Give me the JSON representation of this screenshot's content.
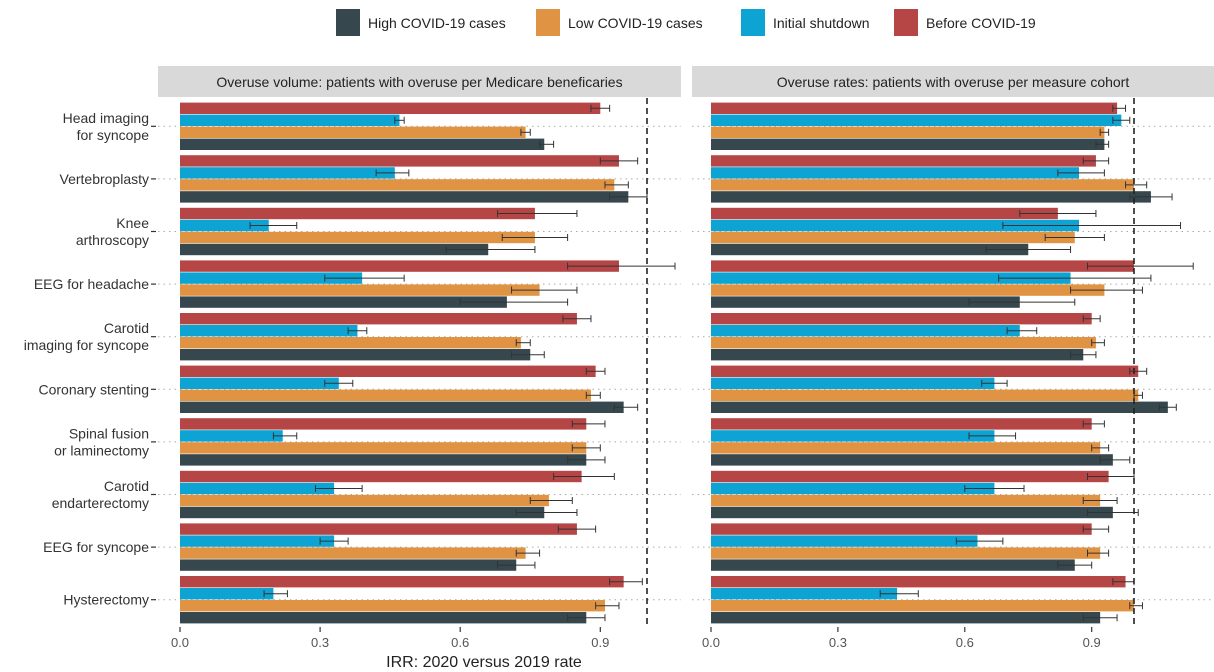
{
  "chart_data": {
    "type": "bar",
    "orientation": "horizontal",
    "xlabel": "IRR: 2020 versus 2019 rate",
    "xlim": [
      0,
      1.12
    ],
    "xticks": [
      0,
      0.3,
      0.6,
      0.9
    ],
    "xtick_labels": [
      "0.0",
      "0.3",
      "0.6",
      "0.9"
    ],
    "reference_line": 1,
    "legend_position": "top",
    "categories": [
      [
        "Head imaging",
        "for syncope"
      ],
      [
        "Vertebroplasty"
      ],
      [
        "Knee",
        "arthroscopy"
      ],
      [
        "EEG for headache"
      ],
      [
        "Carotid",
        "imaging for syncope"
      ],
      [
        "Coronary stenting"
      ],
      [
        "Spinal fusion",
        "or laminectomy"
      ],
      [
        "Carotid",
        "endarterectomy"
      ],
      [
        "EEG for syncope"
      ],
      [
        "Hysterectomy"
      ]
    ],
    "series": [
      {
        "name": "High COVID-19 cases",
        "color": "#36474d"
      },
      {
        "name": "Low COVID-19 cases",
        "color": "#e09443"
      },
      {
        "name": "Initial shutdown",
        "color": "#0da4d4"
      },
      {
        "name": "Before COVID-19",
        "color": "#b64646"
      }
    ],
    "panels": [
      {
        "title": "Overuse volume: patients with overuse per Medicare beneficaries",
        "values": {
          "Before COVID-19": [
            0.9,
            0.94,
            0.76,
            0.94,
            0.85,
            0.89,
            0.87,
            0.86,
            0.85,
            0.95
          ],
          "Initial shutdown": [
            0.47,
            0.46,
            0.19,
            0.39,
            0.38,
            0.34,
            0.22,
            0.33,
            0.33,
            0.2
          ],
          "Low COVID-19 cases": [
            0.74,
            0.93,
            0.76,
            0.77,
            0.73,
            0.88,
            0.87,
            0.79,
            0.74,
            0.91
          ],
          "High COVID-19 cases": [
            0.78,
            0.96,
            0.66,
            0.7,
            0.75,
            0.95,
            0.87,
            0.78,
            0.72,
            0.87
          ]
        },
        "ci_low": {
          "Before COVID-19": [
            0.88,
            0.9,
            0.68,
            0.83,
            0.82,
            0.87,
            0.84,
            0.8,
            0.81,
            0.92
          ],
          "Initial shutdown": [
            0.46,
            0.42,
            0.15,
            0.31,
            0.36,
            0.31,
            0.2,
            0.29,
            0.3,
            0.18
          ],
          "Low COVID-19 cases": [
            0.73,
            0.91,
            0.69,
            0.71,
            0.72,
            0.87,
            0.84,
            0.75,
            0.72,
            0.89
          ],
          "High COVID-19 cases": [
            0.77,
            0.92,
            0.57,
            0.6,
            0.71,
            0.93,
            0.83,
            0.72,
            0.68,
            0.83
          ]
        },
        "ci_high": {
          "Before COVID-19": [
            0.92,
            0.98,
            0.85,
            1.06,
            0.88,
            0.91,
            0.91,
            0.93,
            0.89,
            0.99
          ],
          "Initial shutdown": [
            0.48,
            0.49,
            0.25,
            0.48,
            0.4,
            0.37,
            0.25,
            0.39,
            0.36,
            0.23
          ],
          "Low COVID-19 cases": [
            0.75,
            0.96,
            0.83,
            0.85,
            0.75,
            0.9,
            0.9,
            0.84,
            0.77,
            0.94
          ],
          "High COVID-19 cases": [
            0.8,
            1.0,
            0.76,
            0.83,
            0.78,
            0.98,
            0.91,
            0.85,
            0.76,
            0.91
          ]
        }
      },
      {
        "title": "Overuse rates: patients with overuse per measure cohort",
        "values": {
          "Before COVID-19": [
            0.96,
            0.91,
            0.82,
            1.0,
            0.9,
            1.01,
            0.9,
            0.94,
            0.9,
            0.98
          ],
          "Initial shutdown": [
            0.97,
            0.87,
            0.87,
            0.85,
            0.73,
            0.67,
            0.67,
            0.67,
            0.63,
            0.44
          ],
          "Low COVID-19 cases": [
            0.93,
            1.0,
            0.86,
            0.93,
            0.91,
            1.01,
            0.92,
            0.92,
            0.92,
            1.0
          ],
          "High COVID-19 cases": [
            0.93,
            1.04,
            0.75,
            0.73,
            0.88,
            1.08,
            0.95,
            0.95,
            0.86,
            0.92
          ]
        },
        "ci_low": {
          "Before COVID-19": [
            0.95,
            0.88,
            0.73,
            0.89,
            0.88,
            0.99,
            0.88,
            0.89,
            0.88,
            0.95
          ],
          "Initial shutdown": [
            0.95,
            0.82,
            0.69,
            0.68,
            0.7,
            0.64,
            0.61,
            0.6,
            0.58,
            0.4
          ],
          "Low COVID-19 cases": [
            0.92,
            0.98,
            0.79,
            0.85,
            0.9,
            1.0,
            0.9,
            0.88,
            0.89,
            0.99
          ],
          "High COVID-19 cases": [
            0.91,
            0.99,
            0.65,
            0.61,
            0.85,
            1.06,
            0.92,
            0.89,
            0.82,
            0.88
          ]
        },
        "ci_high": {
          "Before COVID-19": [
            0.98,
            0.94,
            0.91,
            1.14,
            0.92,
            1.03,
            0.93,
            1.0,
            0.94,
            1.0
          ],
          "Initial shutdown": [
            0.99,
            0.93,
            1.11,
            1.04,
            0.77,
            0.7,
            0.72,
            0.74,
            0.69,
            0.49
          ],
          "Low COVID-19 cases": [
            0.94,
            1.03,
            0.93,
            1.02,
            0.93,
            1.02,
            0.94,
            0.96,
            0.94,
            1.02
          ],
          "High COVID-19 cases": [
            0.94,
            1.09,
            0.85,
            0.86,
            0.91,
            1.1,
            0.99,
            1.01,
            0.9,
            0.96
          ]
        }
      }
    ]
  }
}
